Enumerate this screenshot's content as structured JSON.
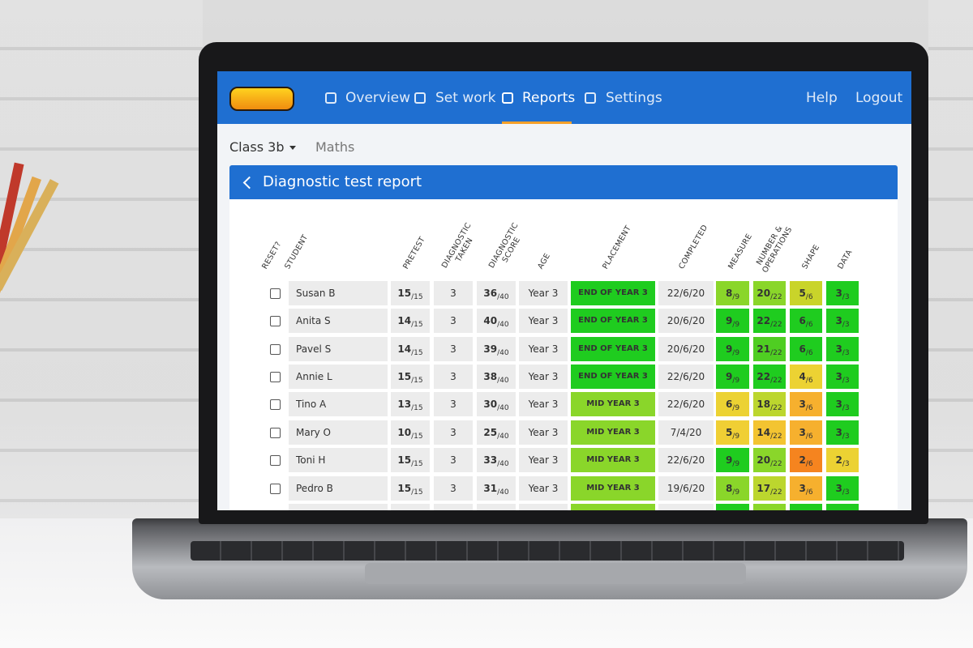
{
  "nav": {
    "items": [
      "Overview",
      "Set work",
      "Reports",
      "Settings"
    ],
    "right": [
      "Help",
      "Logout"
    ]
  },
  "class_selector": "Class 3b",
  "subject": "Maths",
  "panel_title": "Diagnostic test report",
  "table": {
    "headers": [
      "RESET?",
      "STUDENT",
      "PRETEST",
      "DIAGNOSTIC TAKEN",
      "DIAGNOSTIC SCORE",
      "AGE",
      "PLACEMENT",
      "COMPLETED",
      "MEASURE",
      "NUMBER & OPERATIONS",
      "SHAPE",
      "DATA"
    ],
    "rows": [
      {
        "student": "Susan B",
        "pretest": {
          "score": 15,
          "of": "/15"
        },
        "taken": 3,
        "diagnostic": {
          "score": 36,
          "of": "/40"
        },
        "age": "Year 3",
        "placement": {
          "text": "END OF YEAR 3",
          "color": "#1fcc1f"
        },
        "completed": "22/6/20",
        "measure": {
          "score": 8,
          "of": "/9",
          "color": "#8ad62a"
        },
        "numops": {
          "score": 20,
          "of": "/22",
          "color": "#8ad62a"
        },
        "shape": {
          "score": 5,
          "of": "/6",
          "color": "#c9d42a"
        },
        "data": {
          "score": 3,
          "of": "/3",
          "color": "#1fcc1f"
        }
      },
      {
        "student": "Anita S",
        "pretest": {
          "score": 14,
          "of": "/15"
        },
        "taken": 3,
        "diagnostic": {
          "score": 40,
          "of": "/40"
        },
        "age": "Year 3",
        "placement": {
          "text": "END OF YEAR 3",
          "color": "#1fcc1f"
        },
        "completed": "20/6/20",
        "measure": {
          "score": 9,
          "of": "/9",
          "color": "#1fcc1f"
        },
        "numops": {
          "score": 22,
          "of": "/22",
          "color": "#1fcc1f"
        },
        "shape": {
          "score": 6,
          "of": "/6",
          "color": "#1fcc1f"
        },
        "data": {
          "score": 3,
          "of": "/3",
          "color": "#1fcc1f"
        }
      },
      {
        "student": "Pavel S",
        "pretest": {
          "score": 14,
          "of": "/15"
        },
        "taken": 3,
        "diagnostic": {
          "score": 39,
          "of": "/40"
        },
        "age": "Year 3",
        "placement": {
          "text": "END OF YEAR 3",
          "color": "#1fcc1f"
        },
        "completed": "20/6/20",
        "measure": {
          "score": 9,
          "of": "/9",
          "color": "#1fcc1f"
        },
        "numops": {
          "score": 21,
          "of": "/22",
          "color": "#4fce22"
        },
        "shape": {
          "score": 6,
          "of": "/6",
          "color": "#1fcc1f"
        },
        "data": {
          "score": 3,
          "of": "/3",
          "color": "#1fcc1f"
        }
      },
      {
        "student": "Annie L",
        "pretest": {
          "score": 15,
          "of": "/15"
        },
        "taken": 3,
        "diagnostic": {
          "score": 38,
          "of": "/40"
        },
        "age": "Year 3",
        "placement": {
          "text": "END OF YEAR 3",
          "color": "#1fcc1f"
        },
        "completed": "22/6/20",
        "measure": {
          "score": 9,
          "of": "/9",
          "color": "#1fcc1f"
        },
        "numops": {
          "score": 22,
          "of": "/22",
          "color": "#1fcc1f"
        },
        "shape": {
          "score": 4,
          "of": "/6",
          "color": "#ecd233"
        },
        "data": {
          "score": 3,
          "of": "/3",
          "color": "#1fcc1f"
        }
      },
      {
        "student": "Tino A",
        "pretest": {
          "score": 13,
          "of": "/15"
        },
        "taken": 3,
        "diagnostic": {
          "score": 30,
          "of": "/40"
        },
        "age": "Year 3",
        "placement": {
          "text": "MID YEAR 3",
          "color": "#8ad62a"
        },
        "completed": "22/6/20",
        "measure": {
          "score": 6,
          "of": "/9",
          "color": "#ecd233"
        },
        "numops": {
          "score": 18,
          "of": "/22",
          "color": "#bcd62e"
        },
        "shape": {
          "score": 3,
          "of": "/6",
          "color": "#f6b02e"
        },
        "data": {
          "score": 3,
          "of": "/3",
          "color": "#1fcc1f"
        }
      },
      {
        "student": "Mary O",
        "pretest": {
          "score": 10,
          "of": "/15"
        },
        "taken": 3,
        "diagnostic": {
          "score": 25,
          "of": "/40"
        },
        "age": "Year 3",
        "placement": {
          "text": "MID YEAR 3",
          "color": "#8ad62a"
        },
        "completed": "7/4/20",
        "measure": {
          "score": 5,
          "of": "/9",
          "color": "#f0cf34"
        },
        "numops": {
          "score": 14,
          "of": "/22",
          "color": "#f3c431"
        },
        "shape": {
          "score": 3,
          "of": "/6",
          "color": "#f6b02e"
        },
        "data": {
          "score": 3,
          "of": "/3",
          "color": "#1fcc1f"
        }
      },
      {
        "student": "Toni H",
        "pretest": {
          "score": 15,
          "of": "/15"
        },
        "taken": 3,
        "diagnostic": {
          "score": 33,
          "of": "/40"
        },
        "age": "Year 3",
        "placement": {
          "text": "MID YEAR 3",
          "color": "#8ad62a"
        },
        "completed": "22/6/20",
        "measure": {
          "score": 9,
          "of": "/9",
          "color": "#1fcc1f"
        },
        "numops": {
          "score": 20,
          "of": "/22",
          "color": "#8ad62a"
        },
        "shape": {
          "score": 2,
          "of": "/6",
          "color": "#f5841f"
        },
        "data": {
          "score": 2,
          "of": "/3",
          "color": "#ecd233"
        }
      },
      {
        "student": "Pedro B",
        "pretest": {
          "score": 15,
          "of": "/15"
        },
        "taken": 3,
        "diagnostic": {
          "score": 31,
          "of": "/40"
        },
        "age": "Year 3",
        "placement": {
          "text": "MID YEAR 3",
          "color": "#8ad62a"
        },
        "completed": "19/6/20",
        "measure": {
          "score": 8,
          "of": "/9",
          "color": "#8ad62a"
        },
        "numops": {
          "score": 17,
          "of": "/22",
          "color": "#bcd62e"
        },
        "shape": {
          "score": 3,
          "of": "/6",
          "color": "#f6b02e"
        },
        "data": {
          "score": 3,
          "of": "/3",
          "color": "#1fcc1f"
        }
      }
    ]
  }
}
